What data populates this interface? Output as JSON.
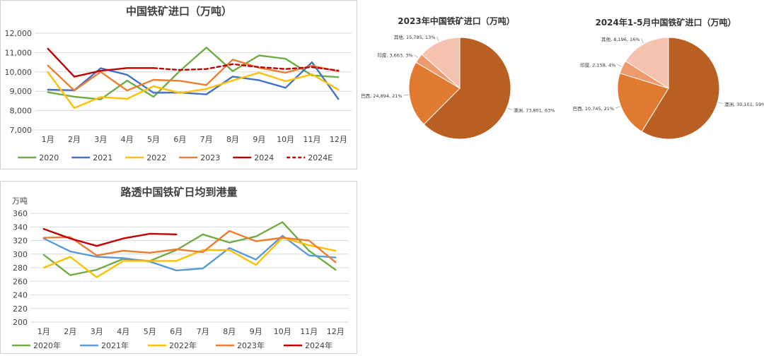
{
  "colors": {
    "s2020": "#70AD47",
    "s2021": "#4472C4",
    "s2022": "#FFC000",
    "s2023": "#ED7D31",
    "s2024": "#C00000",
    "grid": "#d9d9d9",
    "text": "#404040"
  },
  "chart_data": [
    {
      "type": "line",
      "title": "中国铁矿进口（万吨）",
      "categories": [
        "1月",
        "2月",
        "3月",
        "4月",
        "5月",
        "6月",
        "7月",
        "8月",
        "9月",
        "10月",
        "11月",
        "12月"
      ],
      "ylim": [
        7000,
        12000
      ],
      "yticks": [
        7000,
        8000,
        9000,
        10000,
        11000,
        12000
      ],
      "ytick_labels": [
        "7,000",
        "8,000",
        "9,000",
        "10,000",
        "11,000",
        "12,000"
      ],
      "grid": true,
      "legend": "bottom",
      "series": [
        {
          "name": "2020",
          "color": "#70AD47",
          "dash": false,
          "values": [
            8950,
            8720,
            8580,
            9550,
            8710,
            10050,
            11260,
            10040,
            10850,
            10680,
            9820,
            9730
          ]
        },
        {
          "name": "2021",
          "color": "#4472C4",
          "dash": false,
          "values": [
            9080,
            9050,
            10190,
            9850,
            8920,
            8930,
            8840,
            9760,
            9570,
            9180,
            10500,
            8600
          ]
        },
        {
          "name": "2022",
          "color": "#FFC000",
          "dash": false,
          "values": [
            9980,
            8140,
            8700,
            8610,
            9260,
            8910,
            9120,
            9560,
            9960,
            9520,
            9880,
            9080
          ]
        },
        {
          "name": "2023",
          "color": "#ED7D31",
          "dash": false,
          "values": [
            10330,
            9040,
            10000,
            9040,
            9590,
            9540,
            9320,
            10640,
            10210,
            9960,
            10320,
            10030
          ]
        },
        {
          "name": "2024",
          "color": "#C00000",
          "dash": false,
          "values": [
            11200,
            9750,
            10060,
            10200,
            10200,
            null,
            null,
            null,
            null,
            null,
            null,
            null
          ]
        },
        {
          "name": "2024E",
          "color": "#C00000",
          "dash": true,
          "values": [
            null,
            null,
            null,
            null,
            10200,
            10100,
            10150,
            10400,
            10250,
            10150,
            10250,
            10070
          ]
        }
      ]
    },
    {
      "type": "line",
      "title": "路透中国铁矿日均到港量",
      "ylabel": "万吨",
      "categories": [
        "1月",
        "2月",
        "3月",
        "4月",
        "5月",
        "6月",
        "7月",
        "8月",
        "9月",
        "10月",
        "11月",
        "12月"
      ],
      "ylim": [
        200,
        360
      ],
      "yticks": [
        200,
        220,
        240,
        260,
        280,
        300,
        320,
        340,
        360
      ],
      "grid": true,
      "legend": "bottom",
      "series": [
        {
          "name": "2020年",
          "color": "#70AD47",
          "values": [
            299,
            269,
            277,
            293,
            290,
            306,
            329,
            317,
            326,
            347,
            305,
            277
          ]
        },
        {
          "name": "2021年",
          "color": "#5B9BD5",
          "values": [
            323,
            304,
            296,
            294,
            289,
            276,
            279,
            309,
            292,
            327,
            298,
            295
          ]
        },
        {
          "name": "2022年",
          "color": "#FFC000",
          "values": [
            280,
            296,
            266,
            290,
            290,
            290,
            306,
            306,
            284,
            324,
            313,
            305
          ]
        },
        {
          "name": "2023年",
          "color": "#ED7D31",
          "values": [
            324,
            325,
            298,
            305,
            302,
            307,
            303,
            334,
            319,
            324,
            320,
            288
          ]
        },
        {
          "name": "2024年",
          "color": "#C00000",
          "values": [
            337,
            323,
            312,
            323,
            330,
            329,
            null,
            null,
            null,
            null,
            null,
            null
          ]
        }
      ]
    },
    {
      "type": "pie",
      "title": "2023年中国铁矿进口（万吨）",
      "slices": [
        {
          "name": "澳洲",
          "value": 73801,
          "percent": 63,
          "label": "澳洲, 73,801, 63%",
          "color": "#B95F22"
        },
        {
          "name": "巴西",
          "value": 24894,
          "percent": 21,
          "label": "巴西, 24,894, 21%",
          "color": "#E07A30"
        },
        {
          "name": "印度",
          "value": 3663,
          "percent": 3,
          "label": "印度, 3,663, 3%",
          "color": "#EE9A6D"
        },
        {
          "name": "其他",
          "value": 15785,
          "percent": 13,
          "label": "其他, 15,785, 13%",
          "color": "#F5C2AF"
        }
      ]
    },
    {
      "type": "pie",
      "title": "2024年1-5月中国铁矿进口（万吨）",
      "slices": [
        {
          "name": "澳洲",
          "value": 30101,
          "percent": 59,
          "label": "澳洲, 30,101, 59%",
          "color": "#B95F22"
        },
        {
          "name": "巴西",
          "value": 10745,
          "percent": 21,
          "label": "巴西, 10,745, 21%",
          "color": "#E07A30"
        },
        {
          "name": "印度",
          "value": 2158,
          "percent": 4,
          "label": "印度, 2,158, 4%",
          "color": "#EE9A6D"
        },
        {
          "name": "其他",
          "value": 8196,
          "percent": 16,
          "label": "其他, 8,196, 16%",
          "color": "#F5C2AF"
        }
      ]
    }
  ]
}
